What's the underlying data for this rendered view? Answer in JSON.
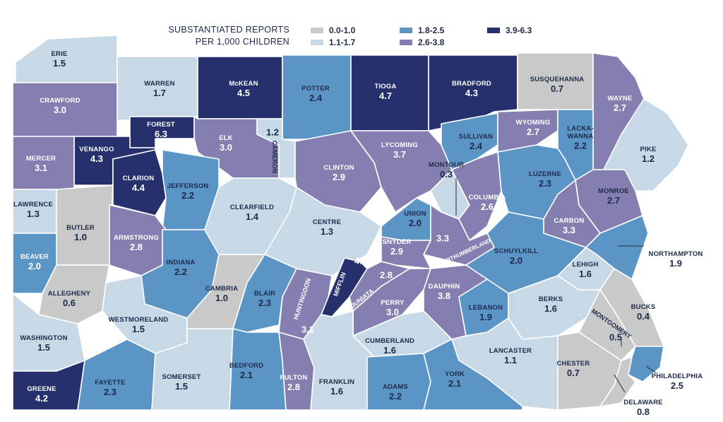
{
  "legend": {
    "title_line1": "SUBSTANTIATED REPORTS",
    "title_line2": "PER 1,000 CHILDREN",
    "classes": [
      {
        "label": "0.0-1.0",
        "color": "#c9c9c9"
      },
      {
        "label": "1.1-1.7",
        "color": "#c7d8e6"
      },
      {
        "label": "1.8-2.5",
        "color": "#5a95c6"
      },
      {
        "label": "2.6-3.8",
        "color": "#847fb0"
      },
      {
        "label": "3.9-6.3",
        "color": "#25306c"
      }
    ]
  },
  "counties": [
    {
      "name": "ERIE",
      "value": "1.5"
    },
    {
      "name": "WARREN",
      "value": "1.7"
    },
    {
      "name": "McKEAN",
      "value": "4.5"
    },
    {
      "name": "POTTER",
      "value": "2.4"
    },
    {
      "name": "TIOGA",
      "value": "4.7"
    },
    {
      "name": "BRADFORD",
      "value": "4.3"
    },
    {
      "name": "SUSQUEHANNA",
      "value": "0.7"
    },
    {
      "name": "WAYNE",
      "value": "2.7"
    },
    {
      "name": "CRAWFORD",
      "value": "3.0"
    },
    {
      "name": "FOREST",
      "value": "6.3"
    },
    {
      "name": "ELK",
      "value": "3.0"
    },
    {
      "name": "CAMERON",
      "value": "1.2"
    },
    {
      "name": "VENANGO",
      "value": "4.3"
    },
    {
      "name": "MERCER",
      "value": "3.1"
    },
    {
      "name": "CLARION",
      "value": "4.4"
    },
    {
      "name": "JEFFERSON",
      "value": "2.2"
    },
    {
      "name": "CLINTON",
      "value": "2.9"
    },
    {
      "name": "LYCOMING",
      "value": "3.7"
    },
    {
      "name": "SULLIVAN",
      "value": "2.4"
    },
    {
      "name": "WYOMING",
      "value": "2.7"
    },
    {
      "name": "LACKA-",
      "value": "2.2",
      "name2": "WANNA"
    },
    {
      "name": "PIKE",
      "value": "1.2"
    },
    {
      "name": "MONTOUR",
      "value": "0.3"
    },
    {
      "name": "LUZERNE",
      "value": "2.3"
    },
    {
      "name": "LAWRENCE",
      "value": "1.3"
    },
    {
      "name": "BUTLER",
      "value": "1.0"
    },
    {
      "name": "CLEARFIELD",
      "value": "1.4"
    },
    {
      "name": "CENTRE",
      "value": "1.3"
    },
    {
      "name": "UNION",
      "value": "2.0"
    },
    {
      "name": "COLUMBIA",
      "value": "2.6"
    },
    {
      "name": "MONROE",
      "value": "2.7"
    },
    {
      "name": "ARMSTRONG",
      "value": "2.8"
    },
    {
      "name": "CARBON",
      "value": "3.3"
    },
    {
      "name": "NORTHUMBERLAND",
      "value": "3.3"
    },
    {
      "name": "BEAVER",
      "value": "2.0"
    },
    {
      "name": "INDIANA",
      "value": "2.2"
    },
    {
      "name": "SNYDER",
      "value": "2.9"
    },
    {
      "name": "SCHUYLKILL",
      "value": "2.0"
    },
    {
      "name": "NORTHAMPTON",
      "value": "1.9"
    },
    {
      "name": "MIFFLIN",
      "value": "4.7"
    },
    {
      "name": "LEHIGH",
      "value": "1.6"
    },
    {
      "name": "ALLEGHENY",
      "value": "0.6"
    },
    {
      "name": "CAMBRIA",
      "value": "1.0"
    },
    {
      "name": "BLAIR",
      "value": "2.3"
    },
    {
      "name": "HUNTINGDON",
      "value": "3.1"
    },
    {
      "name": "JUNIATA",
      "value": "2.8"
    },
    {
      "name": "PERRY",
      "value": "3.0"
    },
    {
      "name": "DAUPHIN",
      "value": "3.8"
    },
    {
      "name": "LEBANON",
      "value": "1.9"
    },
    {
      "name": "BERKS",
      "value": "1.6"
    },
    {
      "name": "BUCKS",
      "value": "0.4"
    },
    {
      "name": "MONTGOMERY",
      "value": "0.5"
    },
    {
      "name": "WESTMORELAND",
      "value": "1.5"
    },
    {
      "name": "WASHINGTON",
      "value": "1.5"
    },
    {
      "name": "CUMBERLAND",
      "value": "1.6"
    },
    {
      "name": "LANCASTER",
      "value": "1.1"
    },
    {
      "name": "CHESTER",
      "value": "0.7"
    },
    {
      "name": "PHILADELPHIA",
      "value": "2.5"
    },
    {
      "name": "DELAWARE",
      "value": "0.8"
    },
    {
      "name": "GREENE",
      "value": "4.2"
    },
    {
      "name": "FAYETTE",
      "value": "2.3"
    },
    {
      "name": "SOMERSET",
      "value": "1.5"
    },
    {
      "name": "BEDFORD",
      "value": "2.1"
    },
    {
      "name": "FULTON",
      "value": "2.8"
    },
    {
      "name": "FRANKLIN",
      "value": "1.6"
    },
    {
      "name": "ADAMS",
      "value": "2.2"
    },
    {
      "name": "YORK",
      "value": "2.1"
    }
  ]
}
